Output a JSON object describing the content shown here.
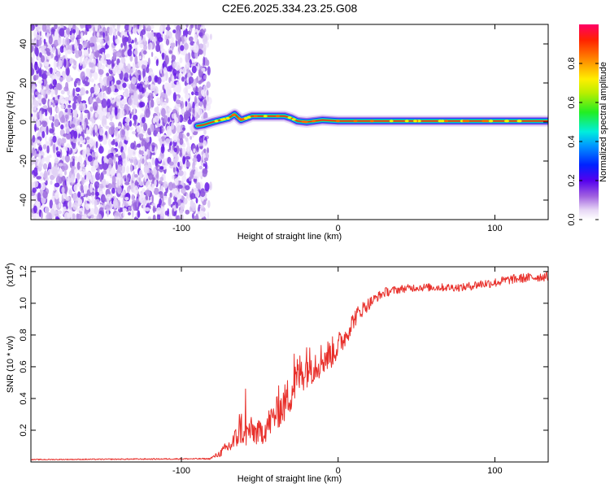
{
  "title": "C2E6.2025.334.23.25.G08",
  "colors": {
    "snr_line": "#e8302b",
    "frame": "#000000",
    "background": "#ffffff"
  },
  "chart_data": [
    {
      "type": "heatmap",
      "id": "spectrogram",
      "xlabel": "Height of straight line (km)",
      "ylabel": "Frequency (Hz)",
      "xlim": [
        -196,
        134
      ],
      "ylim": [
        -50,
        50
      ],
      "x_ticks": [
        -100,
        0,
        100
      ],
      "x_tick_labels": [
        "-100",
        "0",
        "100"
      ],
      "y_ticks": [
        -40,
        -20,
        0,
        20,
        40
      ],
      "y_tick_labels": [
        "-40",
        "-20",
        "0",
        "20",
        "40"
      ],
      "noise_region_x": [
        -196,
        -84
      ],
      "signal_ridge": {
        "x": [
          -90,
          -86,
          -80,
          -75,
          -70,
          -66,
          -62,
          -55,
          -48,
          -40,
          -34,
          -30,
          -26,
          -20,
          -10,
          0,
          10,
          30,
          60,
          90,
          134
        ],
        "freq": [
          -2,
          -1.5,
          0,
          1,
          2,
          4,
          1,
          3,
          3,
          3,
          3,
          2,
          0.5,
          0,
          1,
          0.5,
          0.5,
          0.5,
          0.5,
          0.5,
          0.5
        ]
      },
      "colorbar": {
        "label": "Normalized spectral amplitude",
        "range": [
          0,
          1
        ],
        "ticks": [
          0.0,
          0.2,
          0.4,
          0.6,
          0.8
        ],
        "tick_labels": [
          "0.0",
          "0.2",
          "0.4",
          "0.6",
          "0.8"
        ]
      }
    },
    {
      "type": "line",
      "id": "snr",
      "xlabel": "Height of straight line (km)",
      "ylabel": "SNR (10 * v/v)",
      "y_scale_label": "(x10",
      "y_scale_exponent": "4",
      "y_scale_close": ")",
      "xlim": [
        -196,
        134
      ],
      "ylim": [
        0,
        1.23
      ],
      "x_ticks": [
        -100,
        0,
        100
      ],
      "x_tick_labels": [
        "-100",
        "0",
        "100"
      ],
      "y_ticks": [
        0.2,
        0.4,
        0.6,
        0.8,
        1.0,
        1.2
      ],
      "y_tick_labels": [
        "0.2",
        "0.4",
        "0.6",
        "0.8",
        "1.0",
        "1.2"
      ],
      "series": [
        {
          "name": "SNR",
          "x": [
            -196,
            -90,
            -82,
            -76,
            -72,
            -68,
            -65,
            -62,
            -60,
            -57,
            -50,
            -45,
            -40,
            -35,
            -30,
            -25,
            -20,
            -15,
            -10,
            -5,
            0,
            5,
            10,
            15,
            20,
            25,
            30,
            40,
            50,
            60,
            70,
            80,
            90,
            100,
            110,
            120,
            134
          ],
          "values": [
            0.015,
            0.02,
            0.02,
            0.05,
            0.08,
            0.11,
            0.15,
            0.23,
            0.15,
            0.2,
            0.18,
            0.23,
            0.3,
            0.35,
            0.45,
            0.55,
            0.6,
            0.62,
            0.65,
            0.68,
            0.73,
            0.8,
            0.9,
            0.96,
            1.0,
            1.04,
            1.07,
            1.09,
            1.1,
            1.1,
            1.1,
            1.1,
            1.12,
            1.13,
            1.15,
            1.16,
            1.17
          ],
          "noise": [
            0.003,
            0.004,
            0.004,
            0.02,
            0.04,
            0.06,
            0.08,
            0.12,
            0.07,
            0.09,
            0.08,
            0.1,
            0.1,
            0.12,
            0.14,
            0.14,
            0.13,
            0.12,
            0.11,
            0.1,
            0.09,
            0.07,
            0.06,
            0.05,
            0.04,
            0.03,
            0.03,
            0.025,
            0.025,
            0.025,
            0.025,
            0.025,
            0.03,
            0.03,
            0.03,
            0.03,
            0.03
          ],
          "spikes": [
            {
              "x": -59,
              "value": 0.46
            },
            {
              "x": -63,
              "value": 0.3
            },
            {
              "x": -38,
              "value": 0.48
            },
            {
              "x": -28,
              "value": 0.68
            },
            {
              "x": -20,
              "value": 0.72
            }
          ]
        }
      ]
    }
  ]
}
